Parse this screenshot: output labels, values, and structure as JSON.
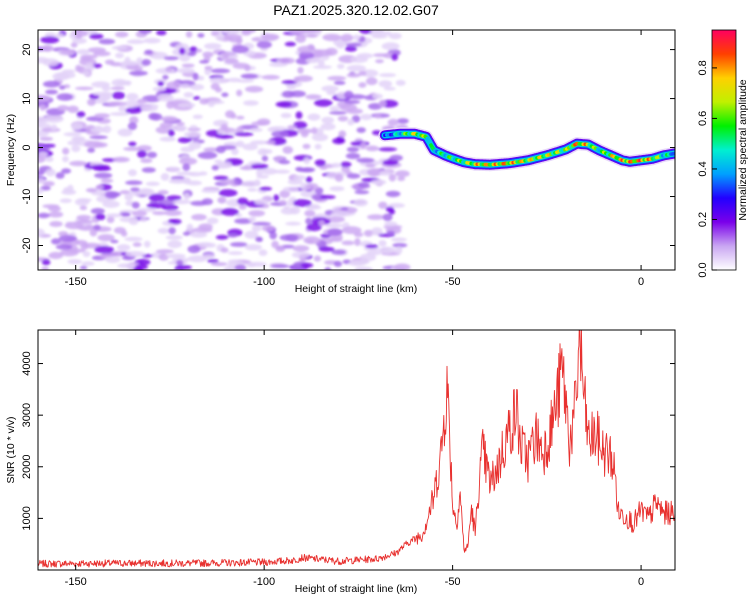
{
  "title": "PAZ1.2025.320.12.02.G07",
  "chart_data": [
    {
      "type": "heatmap",
      "xlabel": "Height of straight line (km)",
      "ylabel": "Frequency (Hz)",
      "xlim": [
        -160,
        9
      ],
      "ylim": [
        -25,
        24
      ],
      "xticks": [
        -150,
        -100,
        -50,
        0
      ],
      "yticks": [
        -20,
        -10,
        0,
        10,
        20
      ],
      "colorbar": {
        "label": "Normalized spectral amplitude",
        "range": [
          0.0,
          0.95
        ],
        "ticks": [
          0.0,
          0.2,
          0.4,
          0.6,
          0.8
        ],
        "colormap": [
          "#ffffff",
          "#c9a6f2",
          "#7a00ea",
          "#2200ff",
          "#00a0ff",
          "#00f0d0",
          "#00f000",
          "#c0f000",
          "#ffd000",
          "#ff4000",
          "#ff0060"
        ]
      },
      "noise_region": {
        "x_range": [
          -160,
          -63
        ],
        "freq_range": [
          -25,
          24
        ],
        "amplitude": 0.1
      },
      "signal_track": {
        "height_km": [
          -68,
          -64,
          -60,
          -57,
          -55,
          -52,
          -50,
          -47,
          -44,
          -40,
          -35,
          -30,
          -25,
          -20,
          -17,
          -14,
          -11,
          -8,
          -5,
          -3,
          0,
          3,
          6,
          9
        ],
        "frequency_hz": [
          2.5,
          2.8,
          2.8,
          2.2,
          -0.5,
          -1.6,
          -2.2,
          -3.0,
          -3.4,
          -3.5,
          -3.2,
          -2.6,
          -1.6,
          -0.4,
          0.8,
          0.6,
          -0.6,
          -1.6,
          -2.6,
          -2.9,
          -2.6,
          -2.3,
          -1.6,
          -1.2
        ],
        "amplitude": [
          0.35,
          0.55,
          0.8,
          0.7,
          0.55,
          0.6,
          0.65,
          0.7,
          0.85,
          0.85,
          0.9,
          0.8,
          0.8,
          0.7,
          0.9,
          0.85,
          0.6,
          0.8,
          0.9,
          0.9,
          0.95,
          0.85,
          0.6,
          0.5
        ]
      }
    },
    {
      "type": "line",
      "xlabel": "Height of straight line (km)",
      "ylabel": "SNR (10 * v/v)",
      "xlim": [
        -160,
        9
      ],
      "ylim": [
        0,
        4650
      ],
      "xticks": [
        -150,
        -100,
        -50,
        0
      ],
      "yticks": [
        1000,
        2000,
        3000,
        4000
      ],
      "series": [
        {
          "name": "SNR",
          "color": "#e8312f",
          "x": [
            -160,
            -140,
            -120,
            -100,
            -92,
            -90,
            -80,
            -70,
            -65,
            -62,
            -58,
            -55,
            -53,
            -51.5,
            -51,
            -50,
            -49,
            -48,
            -47,
            -46,
            -45,
            -44,
            -43,
            -42,
            -40,
            -38,
            -36,
            -34,
            -33,
            -32,
            -30,
            -28,
            -26,
            -24,
            -22,
            -21,
            -20,
            -19,
            -18,
            -17,
            -16.5,
            -15,
            -14,
            -12,
            -10,
            -8,
            -7,
            -6,
            -4,
            -2,
            0,
            2,
            4,
            6,
            9
          ],
          "y": [
            120,
            130,
            130,
            150,
            190,
            240,
            170,
            220,
            330,
            520,
            700,
            1400,
            2300,
            3550,
            3000,
            1300,
            900,
            1500,
            400,
            430,
            1200,
            700,
            1700,
            2300,
            1650,
            2000,
            2500,
            2900,
            3100,
            2400,
            2150,
            2600,
            2300,
            2700,
            3400,
            3900,
            3300,
            2500,
            2800,
            3400,
            4650,
            3200,
            2500,
            2600,
            2300,
            2200,
            1900,
            1100,
            1050,
            900,
            1150,
            1000,
            1300,
            1100,
            1100
          ]
        }
      ]
    }
  ]
}
